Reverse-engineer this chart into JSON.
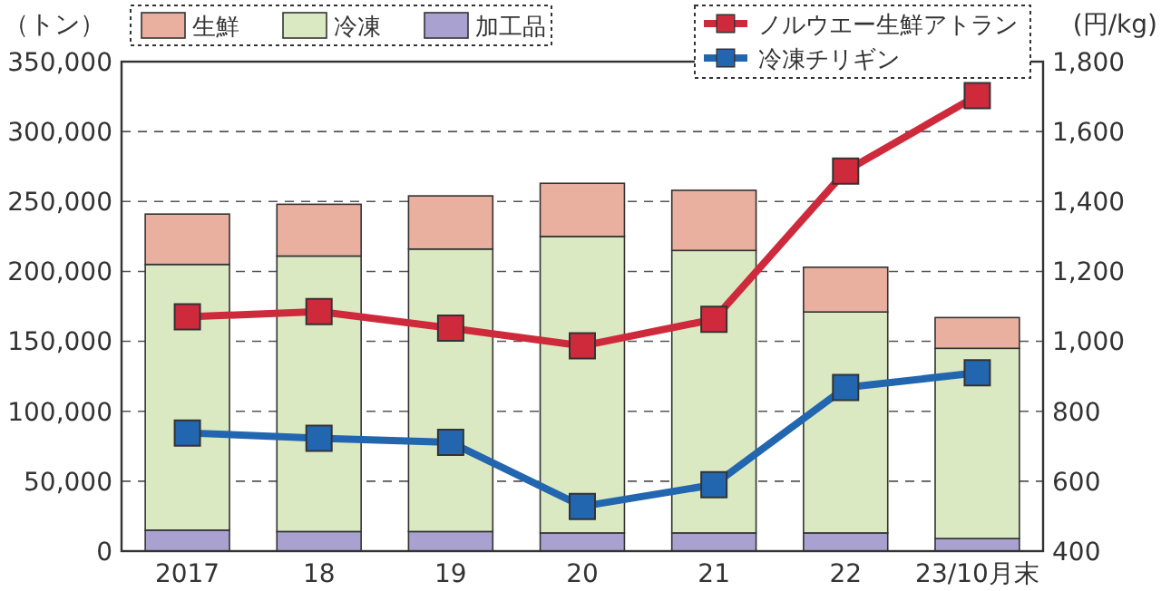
{
  "chart_data": {
    "type": "bar",
    "stacked": true,
    "ylabel": "（トン）",
    "y2label": "(円/kg)",
    "categories": [
      "2017",
      "18",
      "19",
      "20",
      "21",
      "22",
      "23/10月末"
    ],
    "series": [
      {
        "name": "加工品",
        "color": "#a9a1cf",
        "values": [
          15000,
          14000,
          14000,
          13000,
          13000,
          13000,
          9000
        ]
      },
      {
        "name": "冷凍",
        "color": "#dbe9c3",
        "values": [
          190000,
          197000,
          202000,
          212000,
          202000,
          158000,
          136000
        ]
      },
      {
        "name": "生鮮",
        "color": "#e9b0a0",
        "values": [
          36000,
          37000,
          38000,
          38000,
          43000,
          32000,
          22000
        ]
      },
      {
        "name": "ノルウエー生鮮アトラン",
        "type": "line",
        "axis": "y2",
        "color": "#cf2a3c",
        "values": [
          1070,
          1085,
          1038,
          987,
          1063,
          1487,
          1703
        ]
      },
      {
        "name": "冷凍チリギン",
        "type": "line",
        "axis": "y2",
        "color": "#2366b0",
        "values": [
          738,
          723,
          711,
          528,
          590,
          868,
          910
        ]
      }
    ],
    "ylim": [
      0,
      350000
    ],
    "yticks": [
      {
        "value": 0,
        "label": "0"
      },
      {
        "value": 50000,
        "label": "50,000"
      },
      {
        "value": 100000,
        "label": "100,000"
      },
      {
        "value": 150000,
        "label": "150,000"
      },
      {
        "value": 200000,
        "label": "200,000"
      },
      {
        "value": 250000,
        "label": "250,000"
      },
      {
        "value": 300000,
        "label": "300,000"
      },
      {
        "value": 350000,
        "label": "350,000"
      }
    ],
    "y2lim": [
      400,
      1800
    ],
    "y2ticks": [
      400,
      600,
      800,
      {
        "value": 1000,
        "label": "1,000"
      },
      {
        "value": 1200,
        "label": "1,200"
      },
      {
        "value": 1400,
        "label": "1,400"
      },
      {
        "value": 1600,
        "label": "1,600"
      },
      {
        "value": 1800,
        "label": "1,800"
      }
    ],
    "grid": "y",
    "legend": "top",
    "marker": "square"
  }
}
